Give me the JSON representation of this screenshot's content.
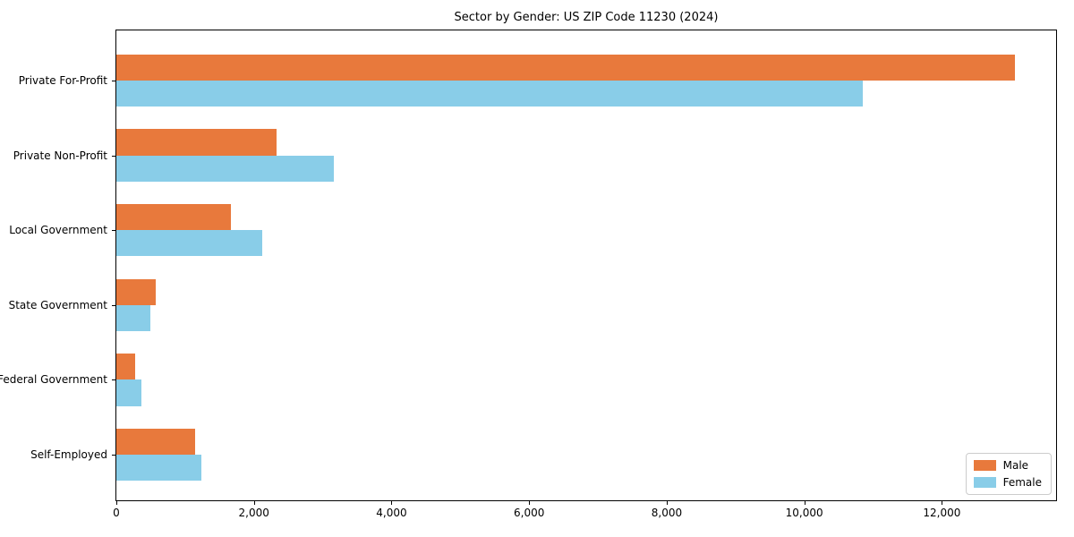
{
  "title": "Sector by Gender: US ZIP Code 11230 (2024)",
  "chart_data": {
    "type": "bar",
    "orientation": "horizontal",
    "title": "Sector by Gender: US ZIP Code 11230 (2024)",
    "xlabel": "",
    "ylabel": "",
    "categories": [
      "Private For-Profit",
      "Private Non-Profit",
      "Local Government",
      "State Government",
      "Federal Government",
      "Self-Employed"
    ],
    "series": [
      {
        "name": "Male",
        "color": "#e8793c",
        "values": [
          13060,
          2330,
          1660,
          575,
          275,
          1150
        ]
      },
      {
        "name": "Female",
        "color": "#89cde8",
        "values": [
          10855,
          3155,
          2115,
          500,
          370,
          1230
        ]
      }
    ],
    "xlim": [
      0,
      13660
    ],
    "x_ticks": [
      0,
      2000,
      4000,
      6000,
      8000,
      10000,
      12000
    ],
    "x_tick_labels": [
      "0",
      "2,000",
      "4,000",
      "6,000",
      "8,000",
      "10,000",
      "12,000"
    ],
    "grid": false,
    "legend": {
      "position": "lower right",
      "entries": [
        "Male",
        "Female"
      ]
    }
  },
  "colors": {
    "male": "#e8793c",
    "female": "#89cde8",
    "spine": "#000000",
    "legend_border": "#cccccc",
    "background": "#ffffff"
  }
}
